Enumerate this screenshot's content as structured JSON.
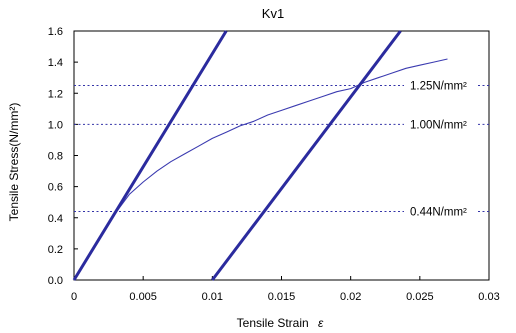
{
  "chart_data": {
    "type": "line",
    "title": "Kv1",
    "xlabel": "Tensile Strain",
    "xlabel_symbol": "ε",
    "ylabel": "Tensile Stress(N/mm²)",
    "xlim": [
      0,
      0.03
    ],
    "ylim": [
      0,
      1.6
    ],
    "xticks": [
      0,
      0.005,
      0.01,
      0.015,
      0.02,
      0.025,
      0.03
    ],
    "xtick_labels": [
      "0",
      "0.005",
      "0.01",
      "0.015",
      "0.02",
      "0.025",
      "0.03"
    ],
    "yticks": [
      0,
      0.2,
      0.4,
      0.6,
      0.8,
      1.0,
      1.2,
      1.4,
      1.6
    ],
    "ytick_labels": [
      "0.0",
      "0.2",
      "0.4",
      "0.6",
      "0.8",
      "1.0",
      "1.2",
      "1.4",
      "1.6"
    ],
    "grid": false,
    "series": [
      {
        "style": "thin",
        "color": "#3b3bb0",
        "x": [
          0,
          0.001,
          0.002,
          0.003,
          0.004,
          0.005,
          0.006,
          0.007,
          0.008,
          0.009,
          0.01,
          0.011,
          0.012,
          0.013,
          0.014,
          0.015,
          0.016,
          0.017,
          0.018,
          0.019,
          0.02,
          0.021,
          0.022,
          0.023,
          0.024,
          0.025,
          0.026,
          0.027
        ],
        "y": [
          0,
          0.14,
          0.29,
          0.43,
          0.55,
          0.63,
          0.7,
          0.76,
          0.81,
          0.86,
          0.91,
          0.95,
          0.99,
          1.02,
          1.06,
          1.09,
          1.12,
          1.15,
          1.18,
          1.21,
          1.23,
          1.27,
          1.3,
          1.33,
          1.36,
          1.38,
          1.4,
          1.42
        ]
      },
      {
        "style": "thick",
        "color": "#2b2b9e",
        "x": [
          0,
          0.011
        ],
        "y": [
          0,
          1.6
        ]
      },
      {
        "style": "thick",
        "color": "#2b2b9e",
        "x": [
          0.01,
          0.0236
        ],
        "y": [
          0,
          1.6
        ]
      }
    ],
    "reference_lines": [
      {
        "y": 1.25,
        "label": "1.25N/mm²"
      },
      {
        "y": 1.0,
        "label": "1.00N/mm²"
      },
      {
        "y": 0.44,
        "label": "0.44N/mm²"
      }
    ],
    "colors": {
      "axis": "#000000",
      "reference": "#3434a8",
      "curve": "#3b3bb0",
      "fit": "#2b2b9e"
    }
  }
}
